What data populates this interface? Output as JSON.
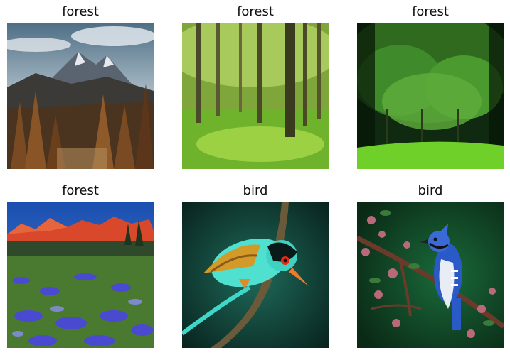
{
  "grid": {
    "items": [
      {
        "label": "forest",
        "scene": "mountain-forest"
      },
      {
        "label": "forest",
        "scene": "sunlit-woodland"
      },
      {
        "label": "forest",
        "scene": "green-canopy-meadow"
      },
      {
        "label": "forest",
        "scene": "wildflower-meadow-red-peaks"
      },
      {
        "label": "bird",
        "scene": "turquoise-magpie-on-branch"
      },
      {
        "label": "bird",
        "scene": "blue-jay-on-branch"
      }
    ]
  }
}
